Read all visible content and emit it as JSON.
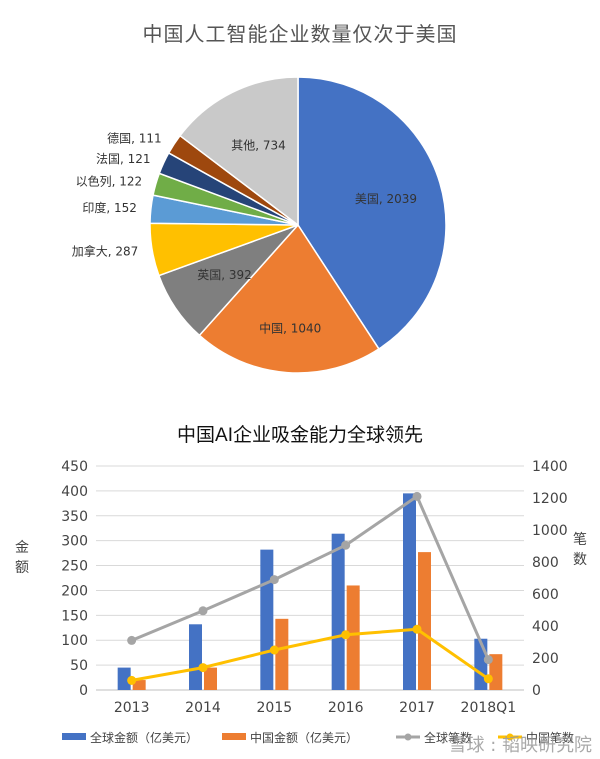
{
  "chart_data": [
    {
      "type": "pie",
      "title": "中国人工智能企业数量仅次于美国",
      "slices": [
        {
          "label": "美国",
          "value": 2039,
          "color": "#4472C4"
        },
        {
          "label": "中国",
          "value": 1040,
          "color": "#ED7D31"
        },
        {
          "label": "英国",
          "value": 392,
          "color": "#7F7F7F"
        },
        {
          "label": "加拿大",
          "value": 287,
          "color": "#FFC000"
        },
        {
          "label": "印度",
          "value": 152,
          "color": "#5B9BD5"
        },
        {
          "label": "以色列",
          "value": 122,
          "color": "#70AD47"
        },
        {
          "label": "法国",
          "value": 121,
          "color": "#264478"
        },
        {
          "label": "德国",
          "value": 111,
          "color": "#9E480E"
        },
        {
          "label": "其他",
          "value": 734,
          "color": "#C9C9C9"
        }
      ]
    },
    {
      "type": "bar",
      "title": "中国AI企业吸金能力全球领先",
      "categories": [
        "2013",
        "2014",
        "2015",
        "2016",
        "2017",
        "2018Q1"
      ],
      "ylabel": "金额",
      "y2label": "笔数",
      "ylim": [
        0,
        450
      ],
      "yticks": [
        0,
        50,
        100,
        150,
        200,
        250,
        300,
        350,
        400,
        450
      ],
      "y2lim": [
        0,
        1400
      ],
      "y2ticks": [
        0,
        200,
        400,
        600,
        800,
        1000,
        1200,
        1400
      ],
      "legend_position": "bottom",
      "series": [
        {
          "name": "全球金额（亿美元）",
          "kind": "bar",
          "axis": "left",
          "color": "#4472C4",
          "values": [
            45,
            132,
            282,
            314,
            395,
            103
          ]
        },
        {
          "name": "中国金额（亿美元）",
          "kind": "bar",
          "axis": "left",
          "color": "#ED7D31",
          "values": [
            20,
            45,
            143,
            210,
            277,
            72
          ]
        },
        {
          "name": "全球笔数",
          "kind": "line",
          "axis": "right",
          "color": "#A5A5A5",
          "values": [
            310,
            495,
            690,
            905,
            1210,
            190
          ]
        },
        {
          "name": "中国笔数",
          "kind": "line",
          "axis": "right",
          "color": "#FFC000",
          "values": [
            60,
            140,
            250,
            345,
            380,
            70
          ]
        }
      ]
    }
  ],
  "watermark": {
    "text": "雪球 : 韬映研究院"
  }
}
